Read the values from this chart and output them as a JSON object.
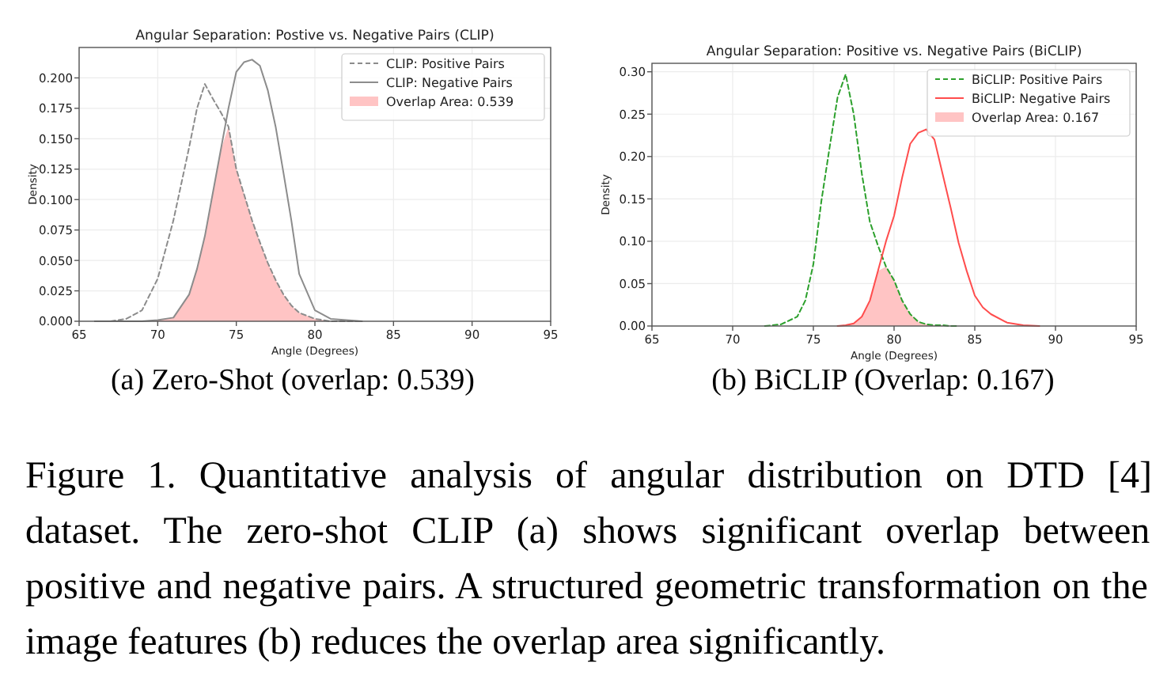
{
  "chart_data": [
    {
      "type": "line",
      "title": "Angular Separation: Postive vs. Negative Pairs (CLIP)",
      "xlabel": "Angle (Degrees)",
      "ylabel": "Density",
      "x": [
        66,
        67,
        68,
        69,
        70,
        71,
        72,
        72.5,
        73,
        73.5,
        74,
        74.5,
        75,
        75.5,
        76,
        76.5,
        77,
        77.5,
        78,
        78.5,
        79,
        80,
        81,
        82,
        83
      ],
      "series": [
        {
          "name": "CLIP: Positive Pairs",
          "type": "line",
          "line_style": "dashed",
          "color": "#8c8c8c",
          "values": [
            0,
            0,
            0.002,
            0.009,
            0.035,
            0.083,
            0.143,
            0.175,
            0.195,
            0.183,
            0.172,
            0.16,
            0.125,
            0.104,
            0.083,
            0.065,
            0.048,
            0.034,
            0.022,
            0.013,
            0.007,
            0.002,
            0,
            0,
            0
          ]
        },
        {
          "name": "CLIP: Negative Pairs",
          "type": "line",
          "line_style": "solid",
          "color": "#8c8c8c",
          "values": [
            0,
            0,
            0,
            0,
            0.001,
            0.003,
            0.022,
            0.043,
            0.07,
            0.105,
            0.14,
            0.175,
            0.205,
            0.213,
            0.215,
            0.21,
            0.19,
            0.16,
            0.122,
            0.083,
            0.039,
            0.009,
            0.002,
            0.001,
            0
          ]
        },
        {
          "name": "Overlap Area: 0.539",
          "type": "area",
          "color": "#ffc4c4",
          "values": [
            0,
            0,
            0,
            0,
            0.001,
            0.003,
            0.022,
            0.043,
            0.07,
            0.105,
            0.14,
            0.16,
            0.125,
            0.104,
            0.083,
            0.065,
            0.048,
            0.034,
            0.022,
            0.013,
            0.007,
            0.002,
            0,
            0,
            0
          ]
        }
      ],
      "xlim": [
        65,
        95
      ],
      "xticks": [
        65,
        70,
        75,
        80,
        85,
        90,
        95
      ],
      "ylim": [
        0,
        0.225
      ],
      "yticks": [
        {
          "value": 0,
          "label": "0.000"
        },
        0.025,
        {
          "value": 0.05,
          "label": "0.050"
        },
        0.075,
        {
          "value": 0.1,
          "label": "0.100"
        },
        0.125,
        {
          "value": 0.15,
          "label": "0.150"
        },
        0.175,
        {
          "value": 0.2,
          "label": "0.200"
        }
      ],
      "grid": true,
      "legend": "top right",
      "annotations": [
        "(a) Zero-Shot (overlap: 0.539)"
      ]
    },
    {
      "type": "line",
      "title": "Angular Separation: Positive vs. Negative Pairs (BiCLIP)",
      "xlabel": "Angle (Degrees)",
      "ylabel": "Density",
      "x": [
        70,
        72,
        73,
        74,
        74.5,
        75,
        75.5,
        76,
        76.5,
        77,
        77.5,
        78,
        78.5,
        79,
        79.5,
        80,
        80.5,
        81,
        81.5,
        82,
        82.5,
        83,
        83.5,
        84,
        84.5,
        85,
        85.5,
        86,
        87,
        88,
        89,
        90
      ],
      "series": [
        {
          "name": "BiCLIP: Positive Pairs",
          "type": "line",
          "line_style": "dashed",
          "color": "#2ca02c",
          "values": [
            null,
            0,
            0.002,
            0.011,
            0.03,
            0.073,
            0.148,
            0.21,
            0.27,
            0.297,
            0.25,
            0.18,
            0.123,
            0.095,
            0.07,
            0.054,
            0.03,
            0.014,
            0.005,
            0.002,
            0.001,
            0.001,
            0,
            0,
            null,
            null,
            null,
            null,
            null,
            null,
            null,
            null
          ]
        },
        {
          "name": "BiCLIP: Negative Pairs",
          "type": "line",
          "line_style": "solid",
          "color": "#ff4d4d",
          "values": [
            null,
            null,
            null,
            null,
            null,
            null,
            null,
            null,
            0,
            0.001,
            0.003,
            0.011,
            0.03,
            0.065,
            0.1,
            0.13,
            0.175,
            0.215,
            0.228,
            0.232,
            0.22,
            0.18,
            0.14,
            0.098,
            0.065,
            0.036,
            0.022,
            0.014,
            0.004,
            0.001,
            0,
            null
          ]
        },
        {
          "name": "Overlap Area: 0.167",
          "type": "area",
          "color": "#ffc4c4",
          "values": [
            0,
            0,
            0,
            0,
            0,
            0,
            0,
            0,
            0,
            0.001,
            0.003,
            0.011,
            0.03,
            0.065,
            0.07,
            0.054,
            0.03,
            0.014,
            0.005,
            0.002,
            0.001,
            0.001,
            0,
            0,
            0,
            0,
            0,
            0,
            0,
            0,
            0,
            0
          ]
        }
      ],
      "xlim": [
        65,
        95
      ],
      "xticks": [
        65,
        70,
        75,
        80,
        85,
        90,
        95
      ],
      "ylim": [
        0,
        0.31
      ],
      "yticks": [
        {
          "value": 0,
          "label": "0.00"
        },
        {
          "value": 0.05,
          "label": "0.05"
        },
        {
          "value": 0.1,
          "label": "0.10"
        },
        {
          "value": 0.15,
          "label": "0.15"
        },
        {
          "value": 0.2,
          "label": "0.20"
        },
        {
          "value": 0.25,
          "label": "0.25"
        },
        {
          "value": 0.3,
          "label": "0.30"
        }
      ],
      "grid": true,
      "legend": "top right",
      "annotations": [
        "(b) BiCLIP (Overlap: 0.167)"
      ]
    },
    {
      "type": "other",
      "annotations": [
        "Figure 1. Quantitative analysis of angular distribution on DTD [4] dataset. The zero-shot CLIP (a) shows significant overlap between positive and negative pairs. A structured geometric transformation on the image features (b) reduces the overlap area significantly."
      ]
    }
  ]
}
